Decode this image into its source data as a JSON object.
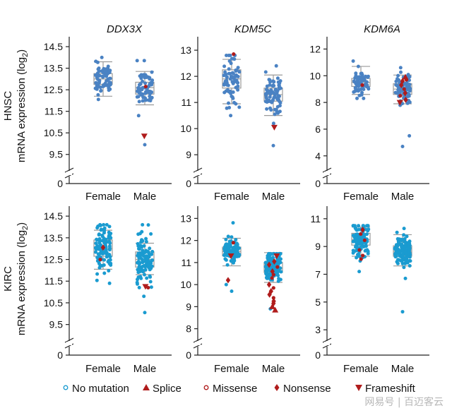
{
  "row_labels": [
    {
      "group": "HNSC",
      "measure": "mRNA expression (log",
      "sub": "2",
      "close": ")"
    },
    {
      "group": "KIRC",
      "measure": "mRNA expression (log",
      "sub": "2",
      "close": ")"
    }
  ],
  "legend": [
    {
      "label": "No mutation",
      "marker": "open-circle",
      "color": "#1a9bd0"
    },
    {
      "label": "Splice",
      "marker": "triangle-up",
      "color": "#b01c1c"
    },
    {
      "label": "Missense",
      "marker": "open-circle",
      "color": "#b01c1c"
    },
    {
      "label": "Nonsense",
      "marker": "diamond",
      "color": "#b01c1c"
    },
    {
      "label": "Frameshift",
      "marker": "triangle-down",
      "color": "#b01c1c"
    }
  ],
  "colors": {
    "hnsc_points": "#4a82c3",
    "kirc_points": "#1a9bd0",
    "mutation": "#b01c1c",
    "box": "#9a9a9a"
  },
  "watermark": "网易号 | 百迈客云",
  "chart_data": [
    {
      "id": "hnsc-ddx3x",
      "type": "box-strip",
      "title": "DDX3X",
      "row": "HNSC",
      "categories": [
        "Female",
        "Male"
      ],
      "yticks": [
        0,
        9.5,
        10.5,
        11.5,
        12.5,
        13.5,
        14.5
      ],
      "ylim": [
        9.0,
        14.7
      ],
      "axis_break": true,
      "boxes": [
        {
          "q1": 12.75,
          "median": 13.0,
          "q3": 13.25,
          "whisker_low": 12.2,
          "whisker_high": 13.8
        },
        {
          "q1": 12.3,
          "median": 12.6,
          "q3": 12.85,
          "whisker_low": 11.8,
          "whisker_high": 13.35
        }
      ],
      "points": [
        {
          "n": 70,
          "min": 12.05,
          "max": 14.0
        },
        {
          "n": 70,
          "min": 11.3,
          "max": 13.85,
          "outliers": [
            9.95
          ]
        }
      ],
      "mutations": [
        {
          "cat": "Male",
          "y": 10.35,
          "type": "Frameshift"
        },
        {
          "cat": "Male",
          "y": 12.65,
          "type": "Missense"
        }
      ]
    },
    {
      "id": "hnsc-kdm5c",
      "type": "box-strip",
      "title": "KDM5C",
      "row": "HNSC",
      "categories": [
        "Female",
        "Male"
      ],
      "yticks": [
        0,
        9,
        10,
        11,
        12,
        13
      ],
      "ylim": [
        8.6,
        13.3
      ],
      "axis_break": true,
      "boxes": [
        {
          "q1": 11.55,
          "median": 11.9,
          "q3": 12.25,
          "whisker_low": 10.95,
          "whisker_high": 12.65
        },
        {
          "q1": 11.05,
          "median": 11.3,
          "q3": 11.55,
          "whisker_low": 10.5,
          "whisker_high": 12.05
        }
      ],
      "points": [
        {
          "n": 70,
          "min": 10.5,
          "max": 12.8
        },
        {
          "n": 80,
          "min": 10.2,
          "max": 12.4,
          "outliers": [
            9.35
          ]
        }
      ],
      "mutations": [
        {
          "cat": "Female",
          "y": 12.85,
          "type": "Missense"
        },
        {
          "cat": "Male",
          "y": 10.05,
          "type": "Frameshift"
        }
      ]
    },
    {
      "id": "hnsc-kdm6a",
      "type": "box-strip",
      "title": "KDM6A",
      "row": "HNSC",
      "categories": [
        "Female",
        "Male"
      ],
      "yticks": [
        0,
        4,
        6,
        8,
        10,
        12
      ],
      "ylim": [
        3.3,
        12.5
      ],
      "axis_break": true,
      "boxes": [
        {
          "q1": 9.2,
          "median": 9.5,
          "q3": 9.8,
          "whisker_low": 8.6,
          "whisker_high": 10.7
        },
        {
          "q1": 8.6,
          "median": 9.0,
          "q3": 9.4,
          "whisker_low": 7.9,
          "whisker_high": 10.05
        }
      ],
      "points": [
        {
          "n": 70,
          "min": 8.3,
          "max": 11.1
        },
        {
          "n": 80,
          "min": 5.5,
          "max": 10.6,
          "outliers": [
            4.7
          ]
        }
      ],
      "mutations": [
        {
          "cat": "Female",
          "y": 9.3,
          "type": "Missense"
        },
        {
          "cat": "Male",
          "y": 9.9,
          "type": "Splice"
        },
        {
          "cat": "Male",
          "y": 9.6,
          "type": "Nonsense"
        },
        {
          "cat": "Male",
          "y": 9.3,
          "type": "Nonsense"
        },
        {
          "cat": "Male",
          "y": 9.0,
          "type": "Missense"
        },
        {
          "cat": "Male",
          "y": 8.7,
          "type": "Nonsense"
        },
        {
          "cat": "Male",
          "y": 8.5,
          "type": "Missense"
        },
        {
          "cat": "Male",
          "y": 8.2,
          "type": "Nonsense"
        },
        {
          "cat": "Male",
          "y": 8.0,
          "type": "Frameshift"
        },
        {
          "cat": "Male",
          "y": 9.7,
          "type": "Missense"
        }
      ]
    },
    {
      "id": "kirc-ddx3x",
      "type": "box-strip",
      "title": "",
      "row": "KIRC",
      "categories": [
        "Female",
        "Male"
      ],
      "yticks": [
        0,
        9.5,
        10.5,
        11.5,
        12.5,
        13.5,
        14.5
      ],
      "ylim": [
        9.0,
        14.7
      ],
      "axis_break": true,
      "boxes": [
        {
          "q1": 12.65,
          "median": 13.0,
          "q3": 13.4,
          "whisker_low": 12.05,
          "whisker_high": 13.85
        },
        {
          "q1": 12.15,
          "median": 12.5,
          "q3": 12.85,
          "whisker_low": 11.8,
          "whisker_high": 13.25
        }
      ],
      "points": [
        {
          "n": 110,
          "min": 11.4,
          "max": 14.1
        },
        {
          "n": 120,
          "min": 10.8,
          "max": 14.1,
          "outliers": [
            10.05
          ]
        }
      ],
      "mutations": [
        {
          "cat": "Female",
          "y": 13.05,
          "type": "Nonsense"
        },
        {
          "cat": "Female",
          "y": 12.5,
          "type": "Missense"
        },
        {
          "cat": "Male",
          "y": 11.25,
          "type": "Frameshift"
        },
        {
          "cat": "Male",
          "y": 11.2,
          "type": "Missense"
        }
      ]
    },
    {
      "id": "kirc-kdm5c",
      "type": "box-strip",
      "title": "",
      "row": "KIRC",
      "categories": [
        "Female",
        "Male"
      ],
      "yticks": [
        0,
        8,
        9,
        10,
        11,
        12,
        13
      ],
      "ylim": [
        7.7,
        13.3
      ],
      "axis_break": true,
      "boxes": [
        {
          "q1": 11.3,
          "median": 11.5,
          "q3": 11.7,
          "whisker_low": 10.85,
          "whisker_high": 12.1
        },
        {
          "q1": 10.55,
          "median": 10.75,
          "q3": 11.0,
          "whisker_low": 10.1,
          "whisker_high": 11.45
        }
      ],
      "points": [
        {
          "n": 100,
          "min": 10.0,
          "max": 12.8,
          "outliers": [
            9.7
          ]
        },
        {
          "n": 120,
          "min": 8.9,
          "max": 11.4
        }
      ],
      "mutations": [
        {
          "cat": "Female",
          "y": 11.3,
          "type": "Frameshift"
        },
        {
          "cat": "Female",
          "y": 10.2,
          "type": "Nonsense"
        },
        {
          "cat": "Female",
          "y": 11.9,
          "type": "Missense"
        },
        {
          "cat": "Male",
          "y": 11.3,
          "type": "Frameshift"
        },
        {
          "cat": "Male",
          "y": 10.8,
          "type": "Missense"
        },
        {
          "cat": "Male",
          "y": 10.6,
          "type": "Nonsense"
        },
        {
          "cat": "Male",
          "y": 10.3,
          "type": "Missense"
        },
        {
          "cat": "Male",
          "y": 10.0,
          "type": "Nonsense"
        },
        {
          "cat": "Male",
          "y": 9.85,
          "type": "Missense"
        },
        {
          "cat": "Male",
          "y": 9.7,
          "type": "Nonsense"
        },
        {
          "cat": "Male",
          "y": 9.55,
          "type": "Nonsense"
        },
        {
          "cat": "Male",
          "y": 9.4,
          "type": "Missense"
        },
        {
          "cat": "Male",
          "y": 9.25,
          "type": "Nonsense"
        },
        {
          "cat": "Male",
          "y": 9.15,
          "type": "Nonsense"
        },
        {
          "cat": "Male",
          "y": 9.0,
          "type": "Splice"
        },
        {
          "cat": "Male",
          "y": 8.85,
          "type": "Splice"
        },
        {
          "cat": "Male",
          "y": 10.9,
          "type": "Nonsense"
        },
        {
          "cat": "Male",
          "y": 10.45,
          "type": "Missense"
        },
        {
          "cat": "Male",
          "y": 11.05,
          "type": "Nonsense"
        }
      ]
    },
    {
      "id": "kirc-kdm6a",
      "type": "box-strip",
      "title": "",
      "row": "KIRC",
      "categories": [
        "Female",
        "Male"
      ],
      "yticks": [
        0,
        3,
        5,
        7,
        9,
        11
      ],
      "ylim": [
        2.6,
        11.5
      ],
      "axis_break": true,
      "boxes": [
        {
          "q1": 9.1,
          "median": 9.5,
          "q3": 9.95,
          "whisker_low": 8.3,
          "whisker_high": 10.4
        },
        {
          "q1": 8.3,
          "median": 8.65,
          "q3": 9.05,
          "whisker_low": 7.6,
          "whisker_high": 9.85
        }
      ],
      "points": [
        {
          "n": 110,
          "min": 7.2,
          "max": 10.5
        },
        {
          "n": 120,
          "min": 6.7,
          "max": 10.3,
          "outliers": [
            4.3
          ]
        }
      ],
      "mutations": [
        {
          "cat": "Female",
          "y": 10.2,
          "type": "Nonsense"
        },
        {
          "cat": "Female",
          "y": 9.9,
          "type": "Missense"
        },
        {
          "cat": "Female",
          "y": 9.45,
          "type": "Missense"
        },
        {
          "cat": "Female",
          "y": 8.75,
          "type": "Missense"
        },
        {
          "cat": "Female",
          "y": 8.35,
          "type": "Missense"
        },
        {
          "cat": "Female",
          "y": 8.1,
          "type": "Missense"
        }
      ]
    }
  ]
}
